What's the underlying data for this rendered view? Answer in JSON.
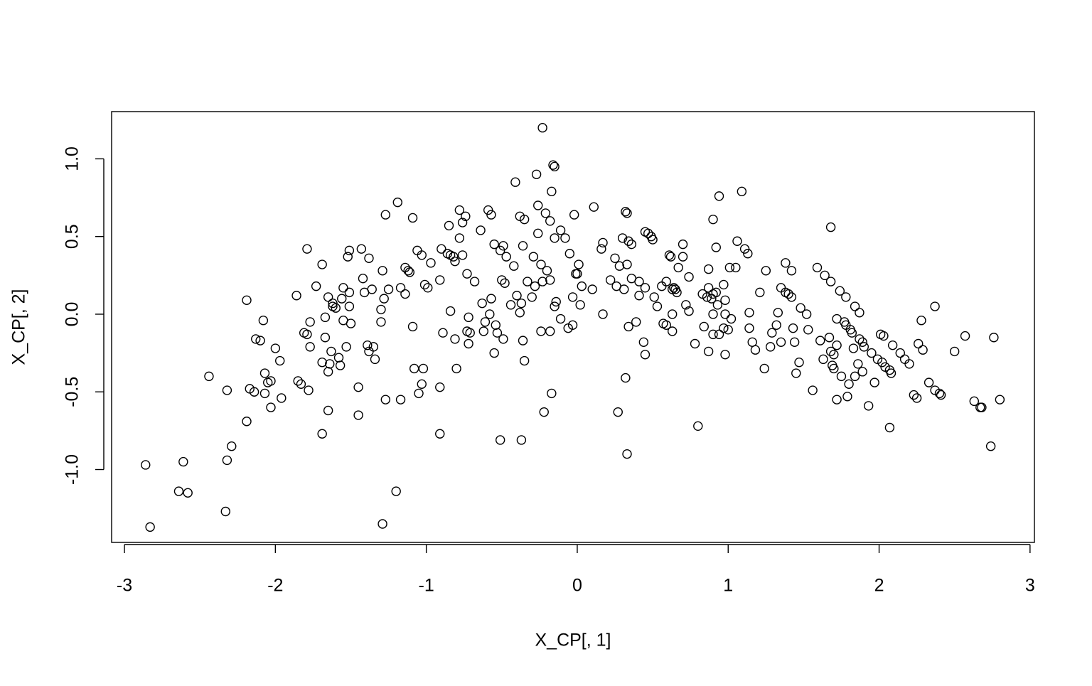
{
  "chart_data": {
    "type": "scatter",
    "x_label": "X_CP[, 1]",
    "y_label": "X_CP[, 2]",
    "xlim": [
      -3.085,
      3.029
    ],
    "ylim": [
      -1.469,
      1.304
    ],
    "xticks": [
      -3,
      -2,
      -1,
      0,
      1,
      2,
      3
    ],
    "yticks": [
      {
        "value": -1,
        "label": "-1.0"
      },
      -0.5,
      {
        "value": 0,
        "label": "0.0"
      },
      0.5,
      {
        "value": 1,
        "label": "1.0"
      }
    ],
    "color": "#000000",
    "marker": "open-circle",
    "x": [
      -2.86,
      -2.83,
      -2.64,
      -2.61,
      -2.58,
      -2.44,
      -2.33,
      -2.32,
      -2.32,
      -2.29,
      -2.19,
      -2.19,
      -2.17,
      -2.14,
      -2.13,
      -2.1,
      -2.08,
      -2.07,
      -2.07,
      -2.05,
      -2.03,
      -2.03,
      -2.0,
      -1.97,
      -1.96,
      -1.86,
      -1.85,
      -1.83,
      -1.81,
      -1.79,
      -1.79,
      -1.78,
      -1.77,
      -1.77,
      -1.73,
      -1.69,
      -1.69,
      -1.69,
      -1.67,
      -1.67,
      -1.65,
      -1.65,
      -1.65,
      -1.64,
      -1.63,
      -1.62,
      -1.62,
      -1.6,
      -1.58,
      -1.57,
      -1.56,
      -1.55,
      -1.55,
      -1.53,
      -1.52,
      -1.51,
      -1.51,
      -1.51,
      -1.5,
      -1.45,
      -1.45,
      -1.43,
      -1.42,
      -1.41,
      -1.39,
      -1.38,
      -1.38,
      -1.36,
      -1.35,
      -1.34,
      -1.3,
      -1.3,
      -1.29,
      -1.29,
      -1.28,
      -1.27,
      -1.27,
      -1.25,
      -1.2,
      -1.19,
      -1.17,
      -1.17,
      -1.14,
      -1.14,
      -1.12,
      -1.11,
      -1.09,
      -1.09,
      -1.08,
      -1.06,
      -1.05,
      -1.03,
      -1.03,
      -1.02,
      -1.01,
      -0.99,
      -0.97,
      -0.91,
      -0.91,
      -0.91,
      -0.9,
      -0.89,
      -0.86,
      -0.85,
      -0.84,
      -0.84,
      -0.82,
      -0.81,
      -0.81,
      -0.8,
      -0.78,
      -0.78,
      -0.76,
      -0.76,
      -0.74,
      -0.73,
      -0.73,
      -0.72,
      -0.72,
      -0.71,
      -0.68,
      -0.64,
      -0.63,
      -0.62,
      -0.61,
      -0.59,
      -0.58,
      -0.57,
      -0.57,
      -0.55,
      -0.55,
      -0.54,
      -0.53,
      -0.51,
      -0.51,
      -0.5,
      -0.49,
      -0.49,
      -0.48,
      -0.47,
      -0.44,
      -0.42,
      -0.41,
      -0.4,
      -0.38,
      -0.38,
      -0.37,
      -0.37,
      -0.36,
      -0.36,
      -0.35,
      -0.35,
      -0.33,
      -0.3,
      -0.29,
      -0.28,
      -0.27,
      -0.26,
      -0.26,
      -0.24,
      -0.24,
      -0.23,
      -0.23,
      -0.22,
      -0.21,
      -0.2,
      -0.18,
      -0.18,
      -0.18,
      -0.17,
      -0.17,
      -0.16,
      -0.15,
      -0.15,
      -0.15,
      -0.14,
      -0.11,
      -0.11,
      -0.08,
      -0.06,
      -0.05,
      -0.03,
      -0.03,
      -0.02,
      -0.01,
      0.0,
      0.01,
      0.02,
      0.03,
      0.1,
      0.11,
      0.16,
      0.17,
      0.17,
      0.22,
      0.25,
      0.26,
      0.27,
      0.28,
      0.3,
      0.31,
      0.32,
      0.32,
      0.33,
      0.33,
      0.33,
      0.34,
      0.34,
      0.36,
      0.36,
      0.39,
      0.41,
      0.41,
      0.44,
      0.45,
      0.45,
      0.45,
      0.47,
      0.49,
      0.5,
      0.51,
      0.53,
      0.56,
      0.57,
      0.59,
      0.59,
      0.61,
      0.62,
      0.63,
      0.63,
      0.63,
      0.64,
      0.65,
      0.66,
      0.67,
      0.7,
      0.7,
      0.72,
      0.74,
      0.74,
      0.78,
      0.8,
      0.83,
      0.84,
      0.86,
      0.87,
      0.87,
      0.87,
      0.89,
      0.9,
      0.9,
      0.9,
      0.9,
      0.92,
      0.92,
      0.93,
      0.94,
      0.94,
      0.97,
      0.97,
      0.98,
      0.98,
      0.98,
      1.0,
      1.01,
      1.02,
      1.05,
      1.06,
      1.09,
      1.11,
      1.13,
      1.14,
      1.14,
      1.16,
      1.18,
      1.21,
      1.24,
      1.25,
      1.28,
      1.29,
      1.32,
      1.33,
      1.35,
      1.35,
      1.38,
      1.38,
      1.4,
      1.42,
      1.42,
      1.43,
      1.44,
      1.45,
      1.47,
      1.48,
      1.52,
      1.53,
      1.56,
      1.59,
      1.61,
      1.63,
      1.64,
      1.67,
      1.68,
      1.68,
      1.68,
      1.69,
      1.7,
      1.7,
      1.72,
      1.72,
      1.72,
      1.74,
      1.75,
      1.77,
      1.78,
      1.78,
      1.79,
      1.8,
      1.81,
      1.82,
      1.83,
      1.84,
      1.84,
      1.86,
      1.87,
      1.87,
      1.89,
      1.89,
      1.9,
      1.93,
      1.95,
      1.97,
      1.99,
      2.01,
      2.02,
      2.03,
      2.04,
      2.07,
      2.07,
      2.08,
      2.09,
      2.14,
      2.17,
      2.2,
      2.23,
      2.25,
      2.26,
      2.28,
      2.29,
      2.33,
      2.37,
      2.37,
      2.4,
      2.41,
      2.5,
      2.57,
      2.63,
      2.67,
      2.68,
      2.74,
      2.76,
      2.8
    ],
    "y": [
      -0.97,
      -1.37,
      -1.14,
      -0.95,
      -1.15,
      -0.4,
      -1.27,
      -0.49,
      -0.94,
      -0.85,
      -0.69,
      0.09,
      -0.48,
      -0.5,
      -0.16,
      -0.17,
      -0.04,
      -0.38,
      -0.51,
      -0.44,
      -0.43,
      -0.6,
      -0.22,
      -0.3,
      -0.54,
      0.12,
      -0.43,
      -0.45,
      -0.12,
      -0.13,
      0.42,
      -0.49,
      -0.05,
      -0.21,
      0.18,
      0.32,
      -0.31,
      -0.77,
      -0.02,
      -0.15,
      -0.37,
      0.11,
      -0.62,
      -0.32,
      -0.24,
      0.07,
      0.05,
      0.04,
      -0.28,
      -0.33,
      0.1,
      -0.04,
      0.17,
      -0.21,
      0.37,
      0.41,
      0.14,
      0.05,
      -0.06,
      -0.47,
      -0.65,
      0.42,
      0.23,
      0.14,
      -0.2,
      -0.24,
      0.36,
      0.16,
      -0.21,
      -0.29,
      0.03,
      -0.05,
      0.28,
      -1.35,
      0.1,
      0.64,
      -0.55,
      0.16,
      -1.14,
      0.72,
      0.17,
      -0.55,
      0.13,
      0.3,
      0.28,
      0.27,
      0.62,
      -0.08,
      -0.35,
      0.41,
      -0.51,
      0.38,
      -0.45,
      -0.35,
      0.19,
      0.17,
      0.33,
      0.22,
      -0.47,
      -0.77,
      0.42,
      -0.12,
      0.39,
      0.57,
      0.02,
      0.38,
      0.37,
      -0.16,
      0.34,
      -0.35,
      0.67,
      0.49,
      0.59,
      0.38,
      0.63,
      -0.11,
      0.26,
      -0.02,
      -0.19,
      -0.12,
      0.21,
      0.54,
      0.07,
      -0.11,
      -0.05,
      0.67,
      0.0,
      0.1,
      0.64,
      -0.25,
      0.45,
      -0.07,
      -0.12,
      0.41,
      -0.81,
      0.22,
      0.44,
      -0.16,
      0.2,
      0.37,
      0.06,
      0.31,
      0.85,
      0.12,
      0.01,
      0.63,
      -0.81,
      0.07,
      -0.17,
      0.44,
      0.61,
      -0.3,
      0.21,
      0.11,
      0.37,
      0.18,
      0.9,
      0.7,
      0.52,
      -0.11,
      0.32,
      1.2,
      0.21,
      -0.63,
      0.65,
      0.28,
      0.6,
      0.22,
      -0.11,
      -0.51,
      0.79,
      0.96,
      0.95,
      0.49,
      0.05,
      0.08,
      -0.03,
      0.54,
      0.49,
      -0.09,
      0.39,
      -0.07,
      0.11,
      0.64,
      0.26,
      0.26,
      0.32,
      0.06,
      0.18,
      0.16,
      0.69,
      0.42,
      0.0,
      0.46,
      0.22,
      0.36,
      0.18,
      -0.63,
      0.31,
      0.49,
      0.16,
      0.66,
      -0.41,
      0.65,
      -0.9,
      0.32,
      0.47,
      -0.08,
      0.45,
      0.23,
      -0.05,
      0.21,
      0.12,
      -0.18,
      0.53,
      0.17,
      -0.26,
      0.52,
      0.5,
      0.48,
      0.11,
      0.05,
      0.18,
      -0.06,
      -0.07,
      0.21,
      0.38,
      0.37,
      0.16,
      0.0,
      -0.11,
      0.17,
      0.16,
      0.14,
      0.3,
      0.45,
      0.37,
      0.06,
      0.24,
      0.02,
      -0.19,
      -0.72,
      0.13,
      -0.08,
      0.11,
      -0.24,
      0.29,
      0.17,
      0.1,
      0.13,
      0.0,
      0.61,
      -0.13,
      0.43,
      0.14,
      0.06,
      -0.13,
      0.76,
      -0.09,
      0.19,
      0.09,
      0.0,
      -0.26,
      -0.1,
      0.3,
      -0.03,
      0.3,
      0.47,
      0.79,
      0.42,
      0.39,
      0.01,
      -0.09,
      -0.18,
      -0.23,
      0.14,
      -0.35,
      0.28,
      -0.21,
      -0.12,
      -0.07,
      0.01,
      -0.18,
      0.17,
      0.33,
      0.14,
      0.13,
      0.11,
      0.28,
      -0.09,
      -0.18,
      -0.38,
      -0.31,
      0.04,
      0.0,
      -0.1,
      -0.49,
      0.3,
      -0.17,
      -0.29,
      0.25,
      -0.15,
      0.21,
      -0.24,
      0.56,
      -0.33,
      -0.26,
      -0.35,
      -0.2,
      -0.03,
      -0.55,
      0.15,
      -0.4,
      -0.05,
      -0.07,
      0.11,
      -0.53,
      -0.45,
      -0.1,
      -0.12,
      -0.22,
      -0.4,
      0.05,
      -0.32,
      -0.16,
      0.01,
      -0.18,
      -0.37,
      -0.21,
      -0.59,
      -0.25,
      -0.44,
      -0.29,
      -0.13,
      -0.31,
      -0.14,
      -0.34,
      -0.36,
      -0.73,
      -0.38,
      -0.2,
      -0.25,
      -0.29,
      -0.32,
      -0.52,
      -0.54,
      -0.19,
      -0.04,
      -0.23,
      -0.44,
      0.05,
      -0.49,
      -0.51,
      -0.52,
      -0.24,
      -0.14,
      -0.56,
      -0.6,
      -0.6,
      -0.85,
      -0.15,
      -0.55
    ]
  }
}
